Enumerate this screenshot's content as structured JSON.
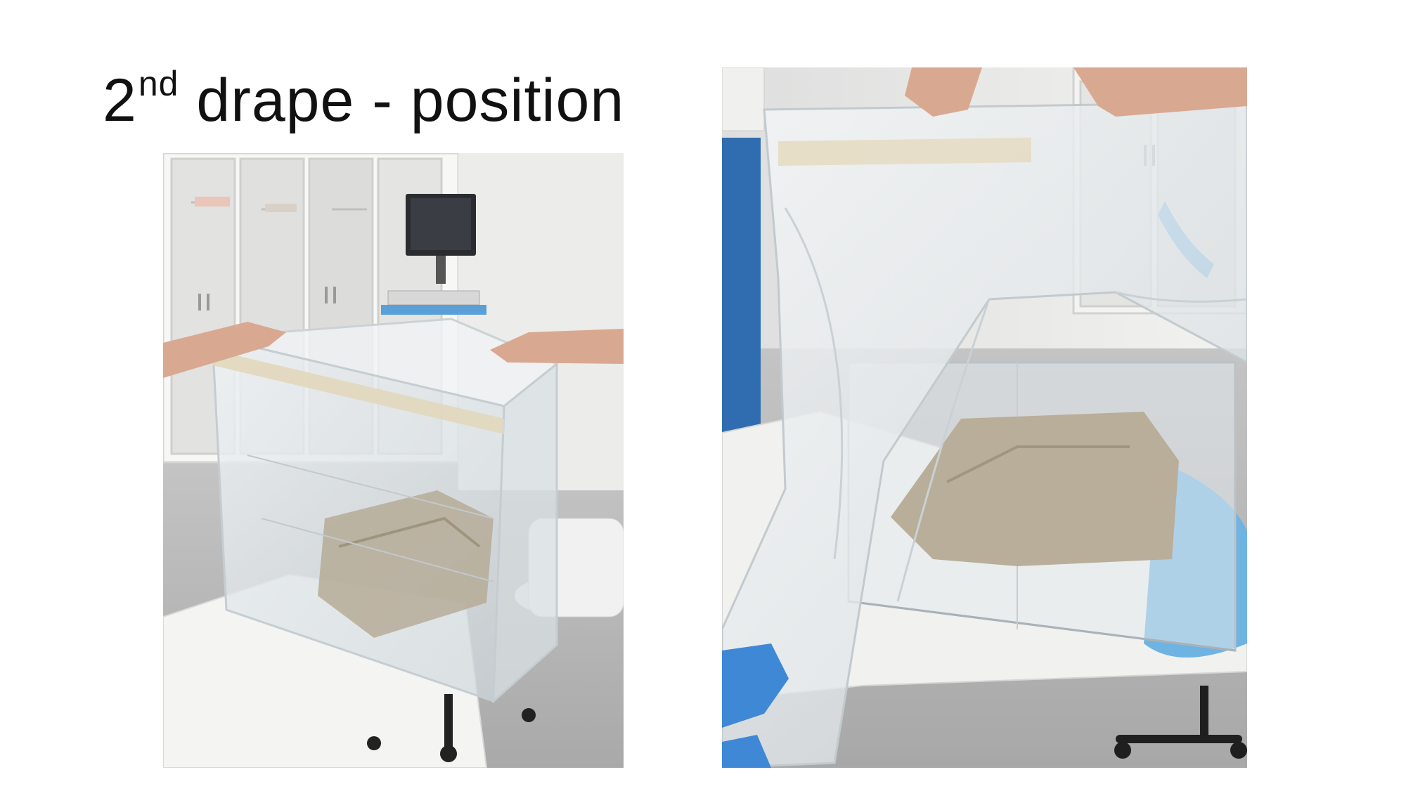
{
  "slide": {
    "title_base": "2",
    "title_superscript": "nd",
    "title_rest": " drape - position"
  },
  "images": [
    {
      "name": "left-photo",
      "description_icon": "photo-icon"
    },
    {
      "name": "right-photo",
      "description_icon": "photo-icon"
    }
  ],
  "colors": {
    "background": "#ffffff",
    "title_text": "#111111",
    "floor": "#bdbdbd",
    "wall": "#e9e9e7",
    "cabinet": "#f6f6f4",
    "plastic": "#dfe6ea",
    "drape_cloth": "#b6ac98",
    "skin": "#d9a890",
    "glove": "#4a90d9",
    "scrubs": "#2f6db0",
    "monitor": "#2a2c30"
  }
}
